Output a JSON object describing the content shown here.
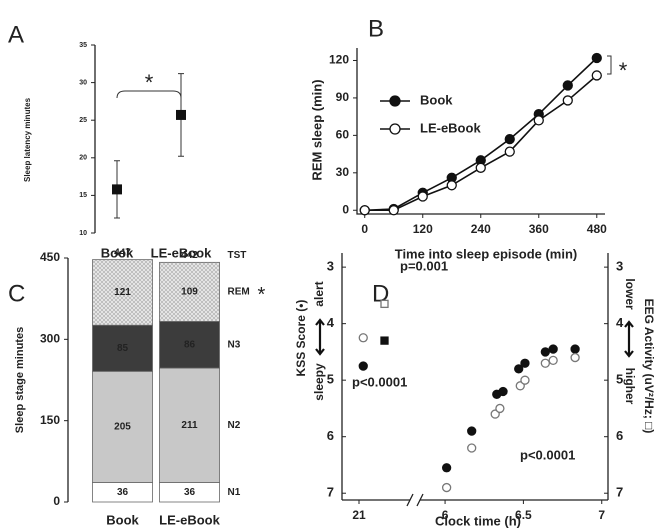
{
  "chart_data": [
    {
      "type": "errorbar",
      "panel": "A",
      "y_label": "Sleep latency minutes",
      "categories": [
        "Book",
        "LE-eBook"
      ],
      "values": [
        15.8,
        25.7
      ],
      "errors": [
        3.8,
        5.5
      ],
      "color": "#111111",
      "ylim": [
        10,
        35
      ],
      "yticks": [
        10,
        15,
        20,
        25,
        30,
        35
      ],
      "annotations": [
        "*"
      ]
    },
    {
      "type": "line",
      "panel": "B",
      "x_label": "Time into sleep episode (min)",
      "y_label": "REM sleep (min)",
      "x": [
        0,
        60,
        120,
        180,
        240,
        300,
        360,
        420,
        480
      ],
      "series": [
        {
          "name": "Book",
          "color": "#111111",
          "fill": true,
          "values": [
            0,
            1,
            14,
            26,
            40,
            57,
            77,
            100,
            122
          ]
        },
        {
          "name": "LE-eBook",
          "color": "#111111",
          "fill": false,
          "values": [
            0,
            0,
            11,
            20,
            34,
            47,
            72,
            88,
            108
          ]
        }
      ],
      "xlim": [
        -16,
        497
      ],
      "xticks": [
        0,
        120,
        240,
        360,
        480
      ],
      "ylim": [
        -3,
        130
      ],
      "yticks": [
        0,
        30,
        60,
        90,
        120
      ],
      "legend": "upper left",
      "annotations": [
        "*"
      ]
    },
    {
      "type": "stacked-bar",
      "panel": "C",
      "y_label": "Sleep stage minutes",
      "categories": [
        "Book",
        "LE-eBook"
      ],
      "series": [
        {
          "name": "N1",
          "color": "#ffffff",
          "values": [
            36,
            36
          ]
        },
        {
          "name": "N2",
          "color": "#c8c8c8",
          "values": [
            205,
            211
          ]
        },
        {
          "name": "N3",
          "color": "#3c3c3c",
          "values": [
            85,
            86
          ]
        },
        {
          "name": "REM",
          "color": "#dcdcdc",
          "values": [
            121,
            109
          ]
        }
      ],
      "totals": [
        447,
        442
      ],
      "total_label": "TST",
      "ylim": [
        0,
        450
      ],
      "yticks": [
        0,
        150,
        300,
        450
      ],
      "annotations": [
        "*"
      ]
    },
    {
      "type": "scatter",
      "panel": "D",
      "x_label": "Clock time (h)",
      "y_label": "KSS Score (•)",
      "y_label_top": "alert",
      "y_label_bottom": "sleepy",
      "y2_label": "EEG Activity (uV²/Hz; □)",
      "y2_label_top": "lower",
      "y2_label_bottom": "higher",
      "series": [
        {
          "marker": "circle",
          "color": "#111111",
          "fill": true,
          "x": [
            21.05,
            6.01,
            6.17,
            6.33,
            6.37,
            6.47,
            6.51,
            6.64,
            6.69,
            6.83
          ],
          "values": [
            4.75,
            6.55,
            5.9,
            5.25,
            5.2,
            4.8,
            4.7,
            4.5,
            4.45,
            4.45
          ]
        },
        {
          "marker": "circle",
          "color": "#777777",
          "fill": false,
          "x": [
            21.05,
            6.01,
            6.17,
            6.32,
            6.35,
            6.48,
            6.51,
            6.64,
            6.69,
            6.83
          ],
          "values": [
            4.25,
            6.9,
            6.2,
            5.6,
            5.5,
            5.1,
            5.0,
            4.7,
            4.65,
            4.6
          ]
        },
        {
          "marker": "square",
          "color": "#111111",
          "fill": true,
          "axis": "y2",
          "x": [
            21.3
          ],
          "values": [
            4.3
          ]
        },
        {
          "marker": "square",
          "color": "#777777",
          "fill": false,
          "axis": "y2",
          "x": [
            21.3
          ],
          "values": [
            3.65
          ]
        }
      ],
      "xlim_parts": [
        [
          20.8,
          21.6
        ],
        [
          5.84,
          7.04
        ]
      ],
      "xticks": [
        21,
        6,
        6.5,
        7
      ],
      "ylim": [
        7.12,
        2.75
      ],
      "yticks": [
        3,
        4,
        5,
        6,
        7
      ],
      "y2lim": [
        7.12,
        2.75
      ],
      "y2ticks": [
        3,
        4,
        5,
        6,
        7
      ],
      "annotations": [
        "p=0.001",
        "p<0.0001",
        "p<0.0001"
      ]
    }
  ]
}
